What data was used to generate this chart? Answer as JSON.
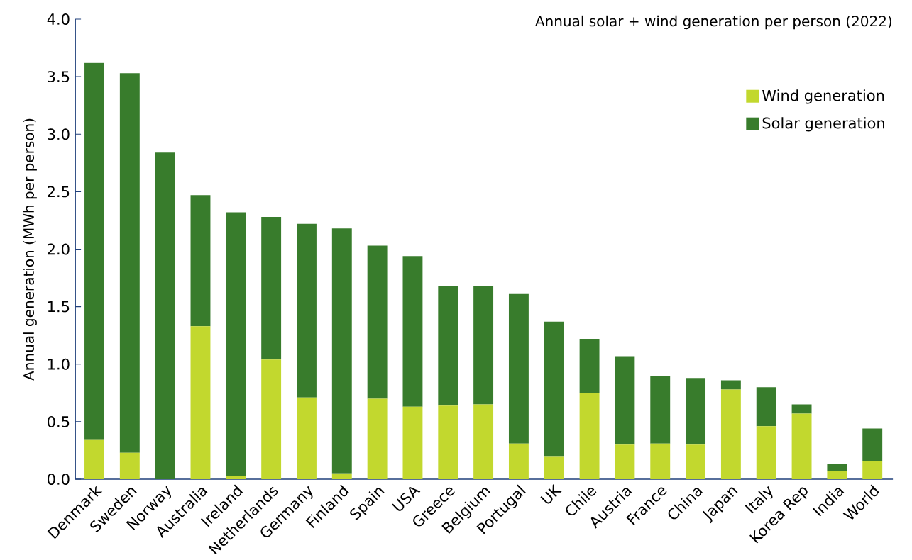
{
  "chart_data": {
    "type": "bar",
    "stacked": true,
    "title": "Annual solar + wind generation per person (2022)",
    "ylabel": "Annual generation (MWh per person)",
    "categories": [
      "Denmark",
      "Sweden",
      "Norway",
      "Australia",
      "Ireland",
      "Netherlands",
      "Germany",
      "Finland",
      "Spain",
      "USA",
      "Greece",
      "Belgium",
      "Portugal",
      "UK",
      "Chile",
      "Austria",
      "France",
      "China",
      "Japan",
      "Italy",
      "Korea Rep",
      "India",
      "World"
    ],
    "series": [
      {
        "name": "Wind generation",
        "color": "#c2d82e",
        "values": [
          0.34,
          0.23,
          0,
          1.33,
          0.03,
          1.04,
          0.71,
          0.05,
          0.7,
          0.63,
          0.64,
          0.65,
          0.31,
          0.2,
          0.75,
          0.3,
          0.31,
          0.3,
          0.78,
          0.46,
          0.57,
          0.07,
          0.16
        ]
      },
      {
        "name": "Solar generation",
        "color": "#387c2c",
        "values": [
          3.28,
          3.3,
          2.84,
          1.14,
          2.29,
          1.24,
          1.51,
          2.13,
          1.33,
          1.31,
          1.04,
          1.03,
          1.3,
          1.17,
          0.47,
          0.77,
          0.59,
          0.58,
          0.08,
          0.34,
          0.08,
          0.06,
          0.28
        ]
      }
    ],
    "ylim": [
      0,
      4.0
    ],
    "yticks": [
      {
        "value": 0,
        "label": "0.0"
      },
      {
        "value": 0.5,
        "label": "0.5"
      },
      {
        "value": 1,
        "label": "1.0"
      },
      {
        "value": 1.5,
        "label": "1.5"
      },
      {
        "value": 2,
        "label": "2.0"
      },
      {
        "value": 2.5,
        "label": "2.5"
      },
      {
        "value": 3,
        "label": "3.0"
      },
      {
        "value": 3.5,
        "label": "3.5"
      },
      {
        "value": 4,
        "label": "4.0"
      }
    ],
    "legend": "top right"
  }
}
